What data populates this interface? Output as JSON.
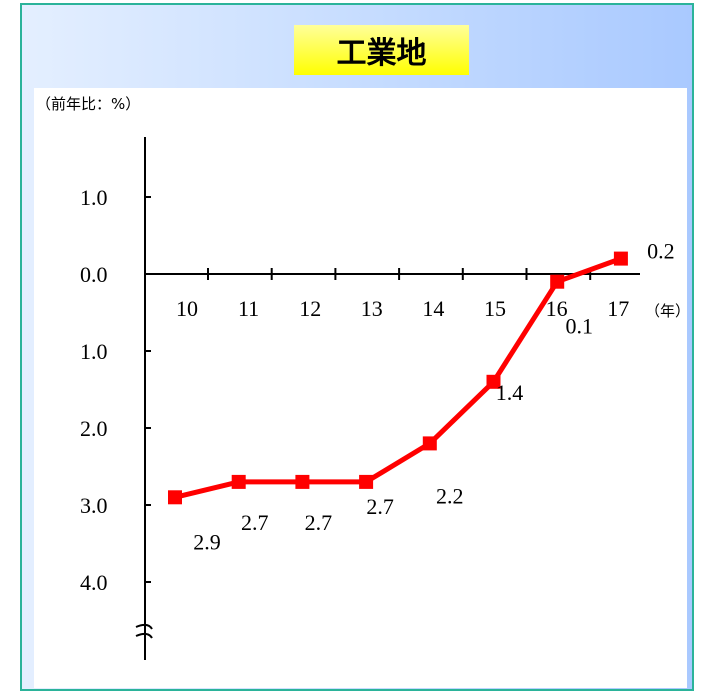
{
  "chart_data": {
    "type": "line",
    "title": "工業地",
    "ylabel": "（前年比：%）",
    "xlabel": "（年）",
    "categories": [
      "10",
      "11",
      "12",
      "13",
      "14",
      "15",
      "16",
      "17"
    ],
    "series": [
      {
        "values": [
          -2.9,
          -2.7,
          -2.7,
          -2.7,
          -2.2,
          -1.4,
          -0.1,
          0.2
        ],
        "labels": [
          "2.9",
          "2.7",
          "2.7",
          "2.7",
          "2.2",
          "1.4",
          "0.1",
          "0.2"
        ]
      }
    ],
    "yticks": [
      1.0,
      0.0,
      -1.0,
      -2.0,
      -3.0,
      -4.0
    ],
    "ytick_labels": [
      "1.0",
      "0.0",
      "1.0",
      "2.0",
      "3.0",
      "4.0"
    ],
    "ylim": [
      -4.8,
      1.7
    ],
    "axis_break": true,
    "grid": false,
    "colors": {
      "line": "#ff0000",
      "marker": "#ff0000"
    }
  }
}
